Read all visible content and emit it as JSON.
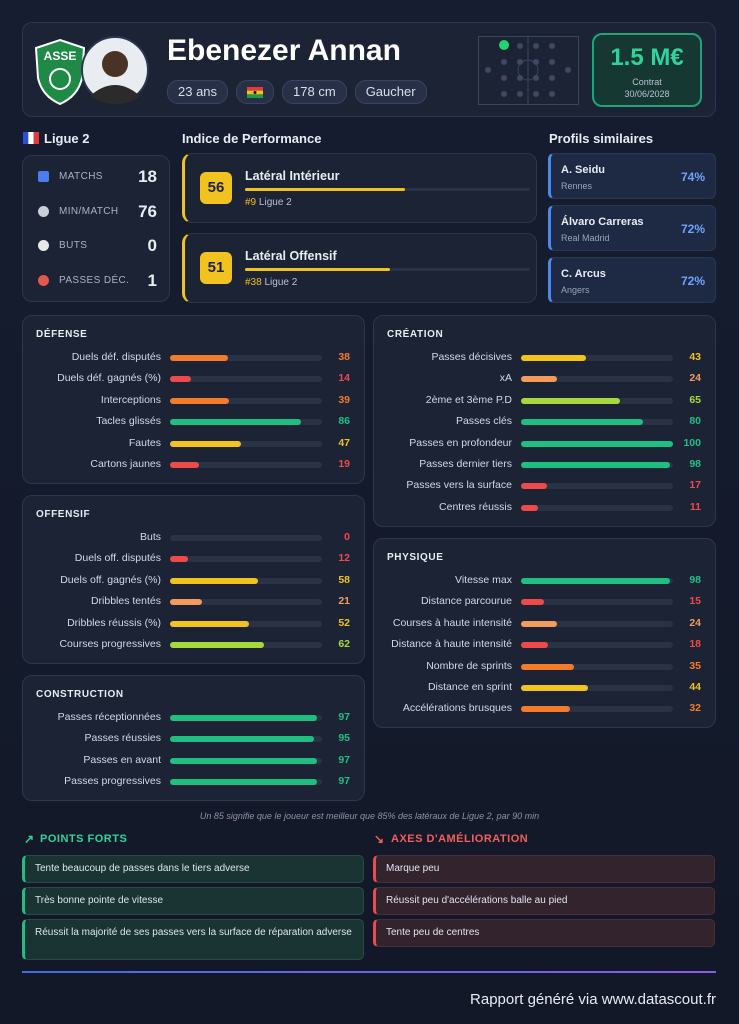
{
  "header": {
    "name": "Ebenezer Annan",
    "tags": [
      "23 ans",
      "178 cm",
      "Gaucher"
    ],
    "market_value": "1.5 M€",
    "contract_label": "Contrat",
    "contract_end": "30/06/2028"
  },
  "league": "Ligue 2",
  "key_stats": [
    {
      "label": "MATCHS",
      "value": 18
    },
    {
      "label": "MIN/MATCH",
      "value": 76
    },
    {
      "label": "BUTS",
      "value": 0
    },
    {
      "label": "PASSES DÉC.",
      "value": 1
    }
  ],
  "performance": {
    "title": "Indice de Performance",
    "items": [
      {
        "score": 56,
        "role": "Latéral Intérieur",
        "rank": "#9",
        "league": "Ligue 2"
      },
      {
        "score": 51,
        "role": "Latéral Offensif",
        "rank": "#38",
        "league": "Ligue 2"
      }
    ]
  },
  "similar": {
    "title": "Profils similaires",
    "items": [
      {
        "name": "A. Seidu",
        "club": "Rennes",
        "similarity": "74%"
      },
      {
        "name": "Álvaro Carreras",
        "club": "Real Madrid",
        "similarity": "72%"
      },
      {
        "name": "C. Arcus",
        "club": "Angers",
        "similarity": "72%"
      }
    ]
  },
  "sections": [
    {
      "title": "DÉFENSE",
      "rows": [
        {
          "label": "Duels déf. disputés",
          "value": 38
        },
        {
          "label": "Duels déf. gagnés (%)",
          "value": 14
        },
        {
          "label": "Interceptions",
          "value": 39
        },
        {
          "label": "Tacles glissés",
          "value": 86
        },
        {
          "label": "Fautes",
          "value": 47
        },
        {
          "label": "Cartons jaunes",
          "value": 19
        }
      ]
    },
    {
      "title": "OFFENSIF",
      "rows": [
        {
          "label": "Buts",
          "value": 0
        },
        {
          "label": "Duels off. disputés",
          "value": 12
        },
        {
          "label": "Duels off. gagnés (%)",
          "value": 58
        },
        {
          "label": "Dribbles tentés",
          "value": 21
        },
        {
          "label": "Dribbles réussis (%)",
          "value": 52
        },
        {
          "label": "Courses progressives",
          "value": 62
        }
      ]
    },
    {
      "title": "CONSTRUCTION",
      "rows": [
        {
          "label": "Passes réceptionnées",
          "value": 97
        },
        {
          "label": "Passes réussies",
          "value": 95
        },
        {
          "label": "Passes en avant",
          "value": 97
        },
        {
          "label": "Passes progressives",
          "value": 97
        }
      ]
    },
    {
      "title": "CRÉATION",
      "rows": [
        {
          "label": "Passes décisives",
          "value": 43
        },
        {
          "label": "xA",
          "value": 24
        },
        {
          "label": "2ème et 3ème P.D",
          "value": 65
        },
        {
          "label": "Passes clés",
          "value": 80
        },
        {
          "label": "Passes en profondeur",
          "value": 100
        },
        {
          "label": "Passes dernier tiers",
          "value": 98
        },
        {
          "label": "Passes vers la surface",
          "value": 17
        },
        {
          "label": "Centres réussis",
          "value": 11
        }
      ]
    },
    {
      "title": "PHYSIQUE",
      "rows": [
        {
          "label": "Vitesse max",
          "value": 98
        },
        {
          "label": "Distance parcourue",
          "value": 15
        },
        {
          "label": "Courses à haute intensité",
          "value": 24
        },
        {
          "label": "Distance à haute intensité",
          "value": 18
        },
        {
          "label": "Nombre de sprints",
          "value": 35
        },
        {
          "label": "Distance en sprint",
          "value": 44
        },
        {
          "label": "Accélérations brusques",
          "value": 32
        }
      ]
    }
  ],
  "footnote": "Un 85 signifie que le joueur est meilleur que 85% des latéraux de Ligue 2, par 90 min",
  "strengths": {
    "title": "POINTS FORTS",
    "items": [
      "Tente beaucoup de passes dans le tiers adverse",
      "Très bonne pointe de vitesse",
      "Réussit la majorité de ses passes vers la surface de réparation adverse"
    ]
  },
  "improvements": {
    "title": "AXES D'AMÉLIORATION",
    "items": [
      "Marque peu",
      "Réussit peu d'accélérations balle au pied",
      "Tente peu de centres"
    ]
  },
  "footer": "Rapport généré via www.datascout.fr"
}
